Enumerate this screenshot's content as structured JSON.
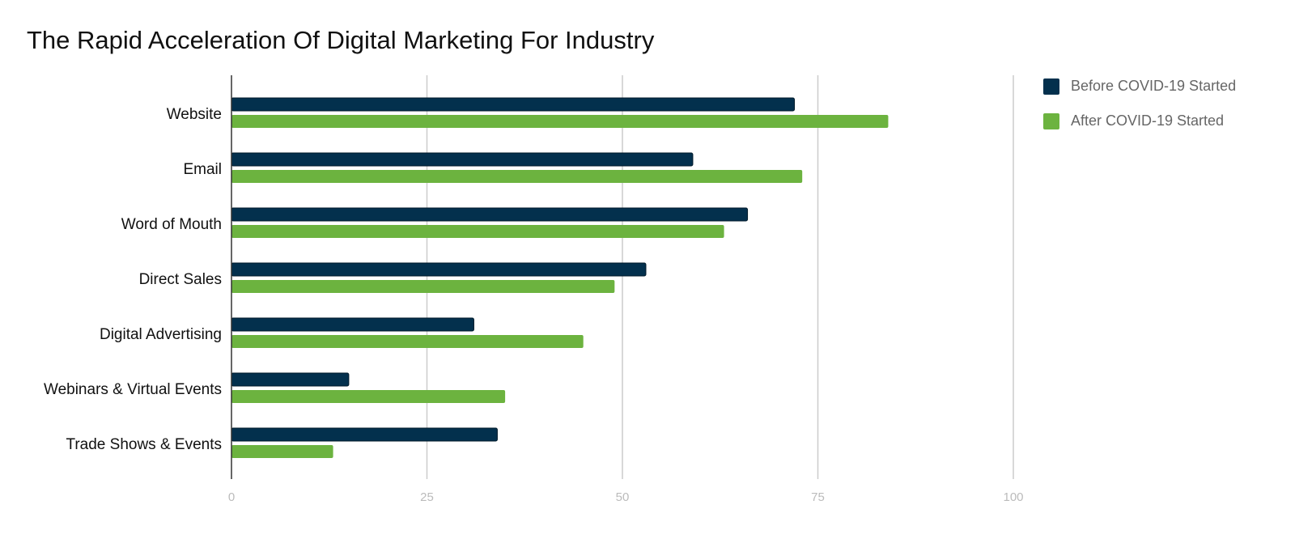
{
  "chart_data": {
    "type": "bar",
    "orientation": "horizontal",
    "title": "The Rapid Acceleration Of Digital Marketing For Industry",
    "categories": [
      "Website",
      "Email",
      "Word of Mouth",
      "Direct Sales",
      "Digital Advertising",
      "Webinars & Virtual Events",
      "Trade Shows & Events"
    ],
    "series": [
      {
        "name": "Before COVID-19 Started",
        "color": "#03304d",
        "values": [
          72,
          59,
          66,
          53,
          31,
          15,
          34
        ]
      },
      {
        "name": "After COVID-19 Started",
        "color": "#6cb33f",
        "values": [
          84,
          73,
          63,
          49,
          45,
          35,
          13
        ]
      }
    ],
    "xlim": [
      0,
      100
    ],
    "xticks": [
      "0",
      "25",
      "50",
      "75",
      "100"
    ],
    "grid": true,
    "legend": "right",
    "xlabel": "",
    "ylabel": ""
  }
}
